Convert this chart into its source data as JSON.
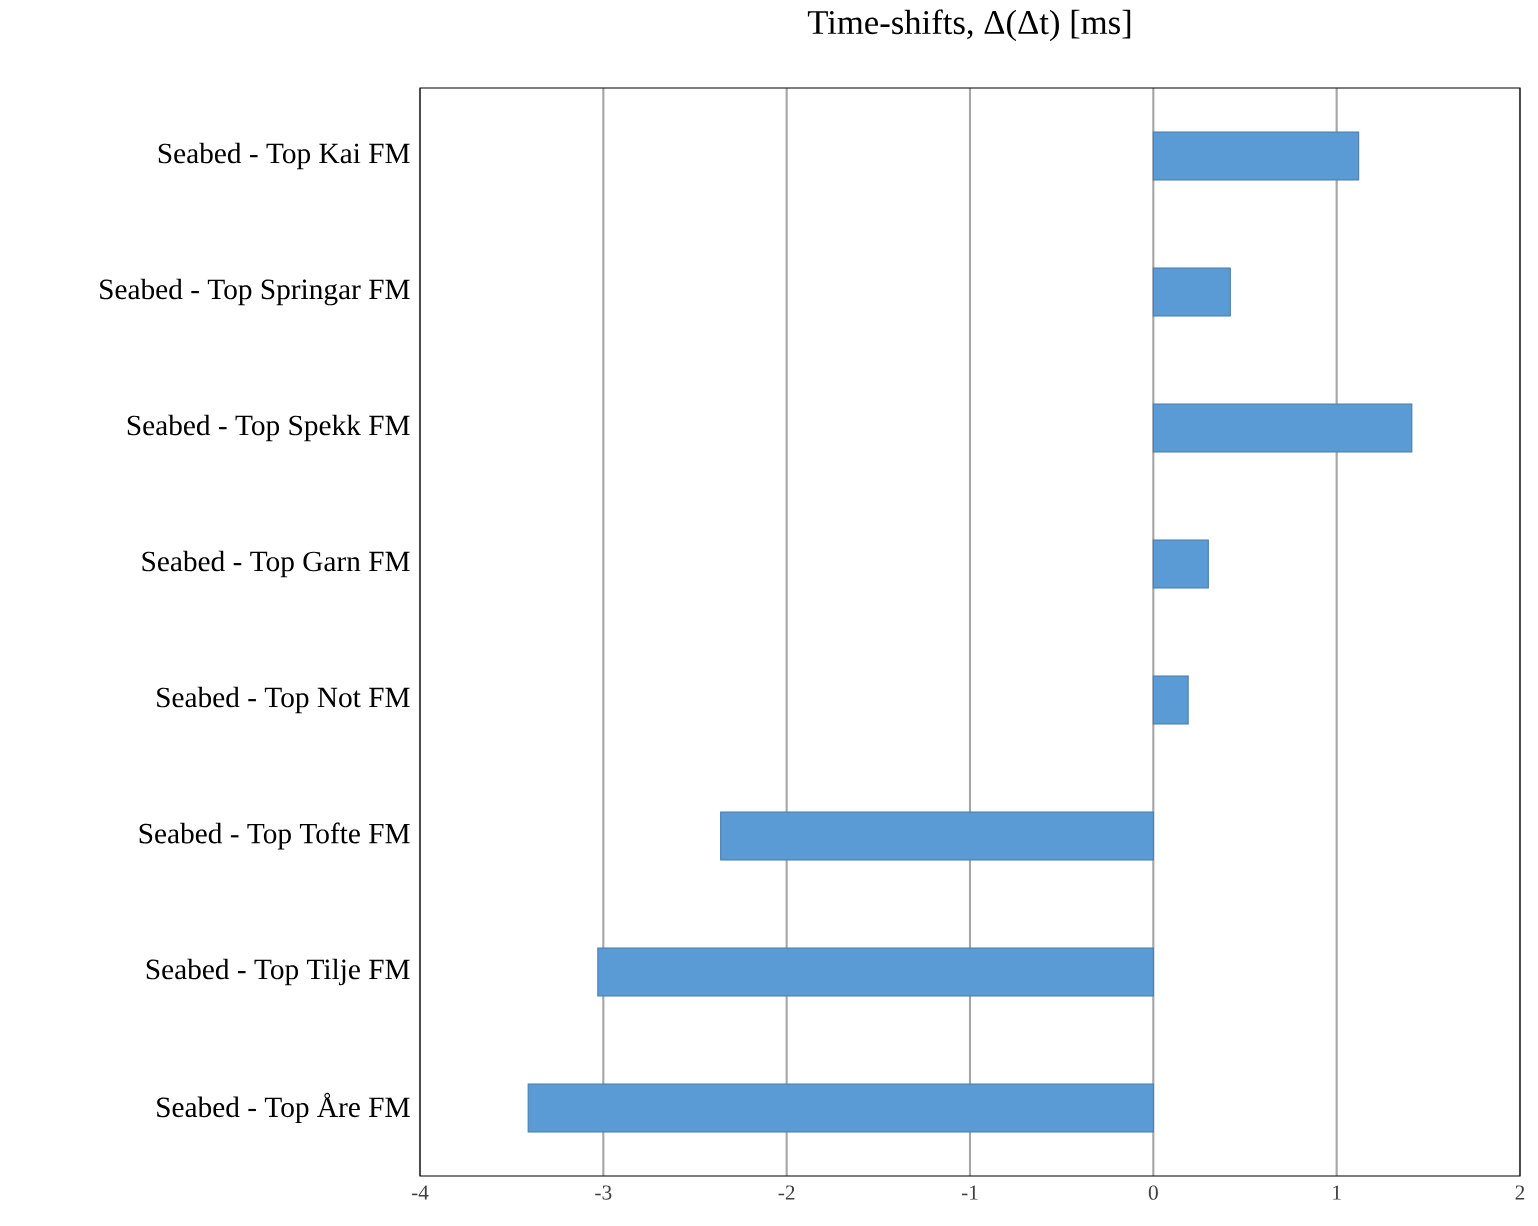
{
  "chart_data": {
    "type": "bar",
    "orientation": "horizontal",
    "title": "Time-shifts, Δ(Δt) [ms]",
    "categories": [
      "Seabed - Top Kai FM",
      "Seabed - Top Springar FM",
      "Seabed - Top Spekk  FM",
      "Seabed - Top Garn FM",
      "Seabed - Top Not FM",
      "Seabed - Top Tofte FM",
      "Seabed - Top Tilje FM",
      "Seabed - Top Åre FM"
    ],
    "values": [
      1.12,
      0.42,
      1.41,
      0.3,
      0.19,
      -2.36,
      -3.03,
      -3.41
    ],
    "color": "#5b9bd5",
    "xlim": [
      -4,
      2
    ],
    "xticks": [
      -4,
      -3,
      -2,
      -1,
      0,
      1,
      2
    ],
    "grid": "x"
  }
}
